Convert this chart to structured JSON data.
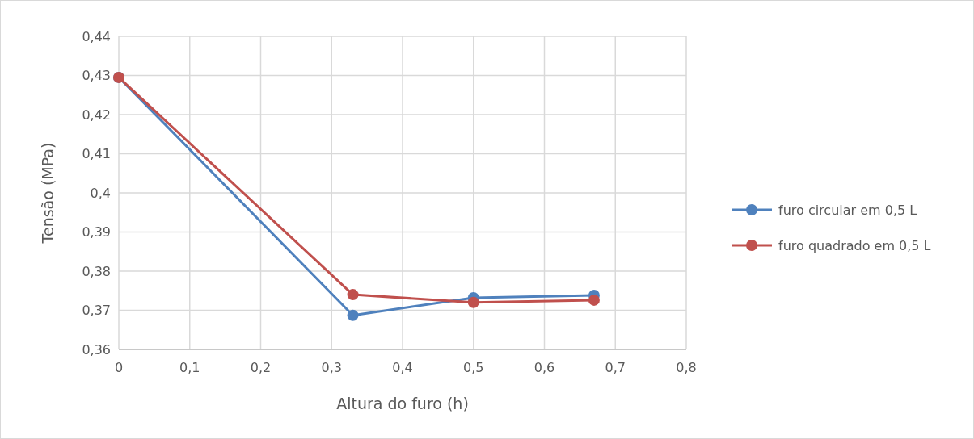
{
  "chart_data": {
    "type": "line",
    "xlabel": "Altura do furo (h)",
    "ylabel": "Tensão (MPa)",
    "x": [
      0,
      0.33,
      0.5,
      0.67
    ],
    "series": [
      {
        "name": "furo circular em 0,5 L",
        "color": "#4f81bd",
        "values": [
          0.4295,
          0.3687,
          0.3732,
          0.3738
        ]
      },
      {
        "name": "furo quadrado em 0,5 L",
        "color": "#c0504d",
        "values": [
          0.4295,
          0.374,
          0.372,
          0.3726
        ]
      }
    ],
    "xlim": [
      0,
      0.8
    ],
    "xticks": [
      {
        "value": 0,
        "label": "0"
      },
      {
        "value": 0.1,
        "label": "0,1"
      },
      {
        "value": 0.2,
        "label": "0,2"
      },
      {
        "value": 0.3,
        "label": "0,3"
      },
      {
        "value": 0.4,
        "label": "0,4"
      },
      {
        "value": 0.5,
        "label": "0,5"
      },
      {
        "value": 0.6,
        "label": "0,6"
      },
      {
        "value": 0.7,
        "label": "0,7"
      },
      {
        "value": 0.8,
        "label": "0,8"
      }
    ],
    "ylim": [
      0.36,
      0.44
    ],
    "yticks": [
      {
        "value": 0.36,
        "label": "0,36"
      },
      {
        "value": 0.37,
        "label": "0,37"
      },
      {
        "value": 0.38,
        "label": "0,38"
      },
      {
        "value": 0.39,
        "label": "0,39"
      },
      {
        "value": 0.4,
        "label": "0,4"
      },
      {
        "value": 0.41,
        "label": "0,41"
      },
      {
        "value": 0.42,
        "label": "0,42"
      },
      {
        "value": 0.43,
        "label": "0,43"
      },
      {
        "value": 0.44,
        "label": "0,44"
      }
    ],
    "grid": true,
    "legend": "right",
    "marker": "circle",
    "line_style": "solid"
  }
}
